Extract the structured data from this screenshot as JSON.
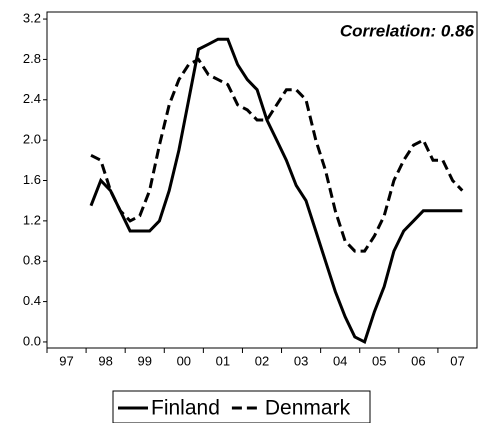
{
  "chart_data": {
    "type": "line",
    "annotation": "Correlation: 0.86",
    "categories": [
      null,
      "97",
      null,
      null,
      null,
      "98",
      null,
      null,
      null,
      "99",
      null,
      null,
      null,
      "00",
      null,
      null,
      null,
      "01",
      null,
      null,
      null,
      "02",
      null,
      null,
      null,
      "03",
      null,
      null,
      null,
      "04",
      null,
      null,
      null,
      "05",
      null,
      null,
      null,
      "06",
      null,
      null,
      null,
      "07",
      null,
      null
    ],
    "series": [
      {
        "name": "Finland",
        "color": "#000000",
        "dash": "solid",
        "values": [
          null,
          null,
          null,
          null,
          1.35,
          1.6,
          1.5,
          1.3,
          1.1,
          1.1,
          1.1,
          1.2,
          1.5,
          1.9,
          2.4,
          2.9,
          2.95,
          3.0,
          3.0,
          2.75,
          2.6,
          2.5,
          2.2,
          2.0,
          1.8,
          1.55,
          1.4,
          1.1,
          0.8,
          0.5,
          0.25,
          0.05,
          0.0,
          0.3,
          0.55,
          0.9,
          1.1,
          1.2,
          1.3,
          1.3,
          1.3,
          1.3,
          1.3,
          null
        ]
      },
      {
        "name": "Denmark",
        "color": "#000000",
        "dash": "dashed",
        "values": [
          null,
          null,
          null,
          null,
          1.85,
          1.8,
          1.5,
          1.3,
          1.2,
          1.25,
          1.5,
          1.95,
          2.35,
          2.6,
          2.75,
          2.8,
          2.65,
          2.6,
          2.55,
          2.35,
          2.3,
          2.2,
          2.2,
          2.35,
          2.5,
          2.5,
          2.4,
          2.0,
          1.7,
          1.3,
          1.0,
          0.9,
          0.9,
          1.05,
          1.25,
          1.6,
          1.8,
          1.95,
          2.0,
          1.8,
          1.8,
          1.6,
          1.5,
          null
        ]
      }
    ],
    "ylim": [
      -0.06,
      3.27
    ],
    "yticks": [
      {
        "value": 0,
        "label": "0.0"
      },
      0.4,
      0.8,
      1.2,
      1.6,
      {
        "value": 2,
        "label": "2.0"
      },
      2.4,
      2.8,
      3.2
    ],
    "legend": "bottom"
  }
}
